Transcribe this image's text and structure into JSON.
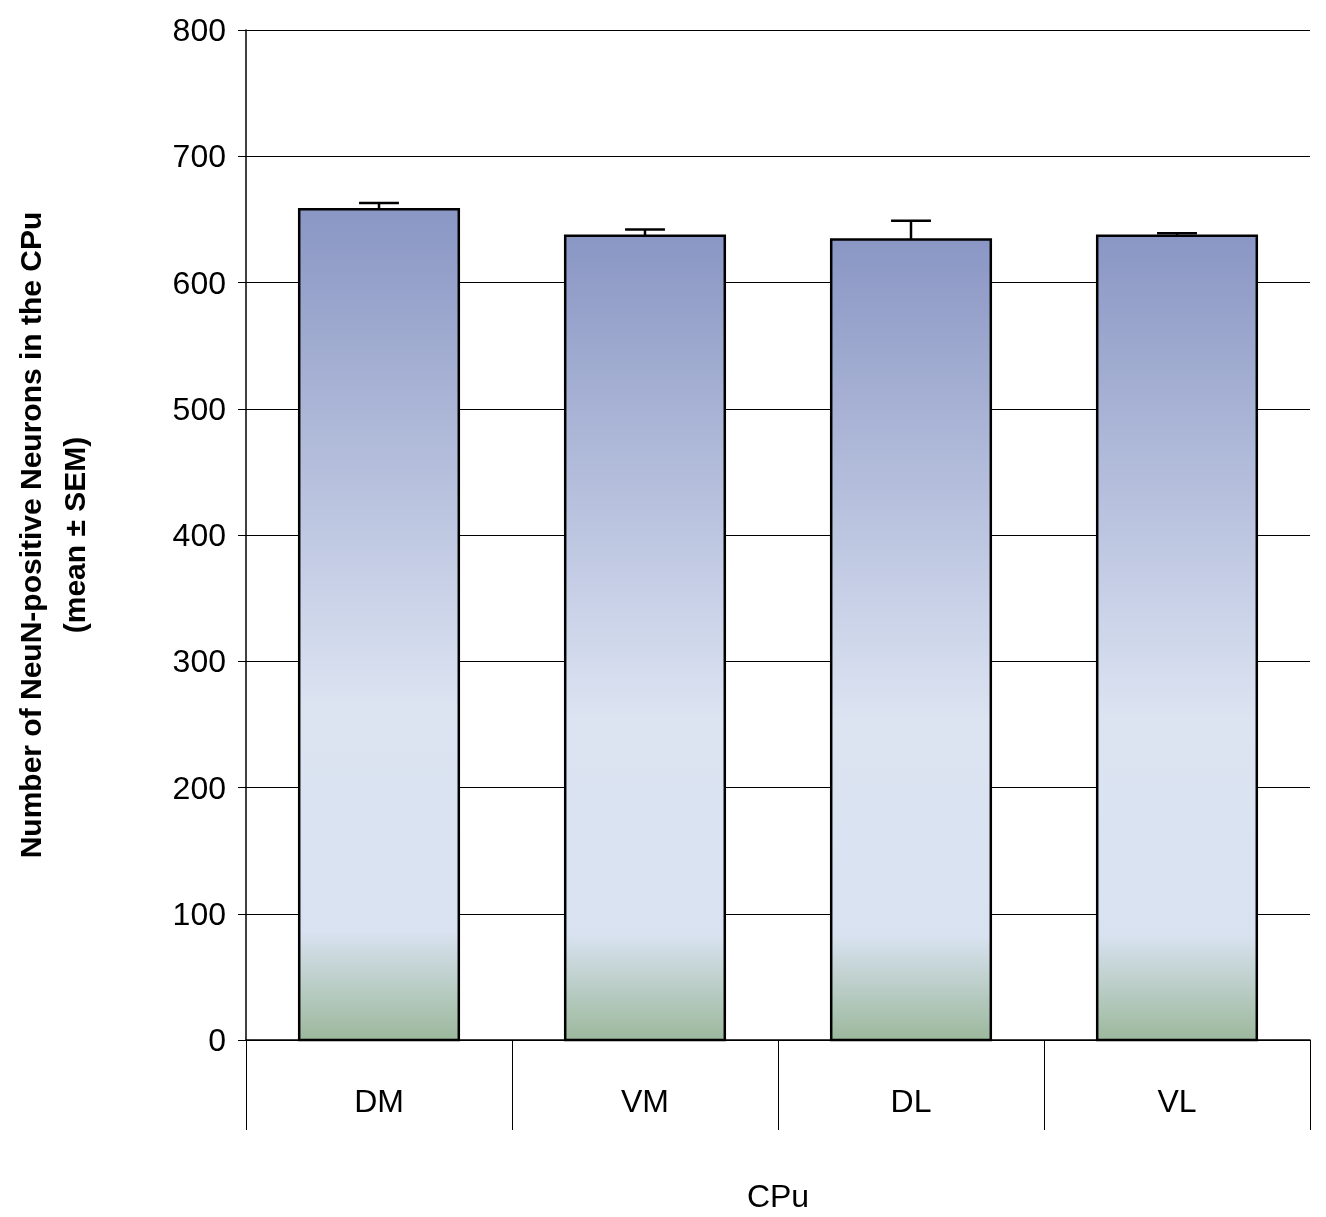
{
  "chart_data": {
    "type": "bar",
    "categories": [
      "DM",
      "VM",
      "DL",
      "VL"
    ],
    "values": [
      658,
      637,
      634,
      637
    ],
    "errors": [
      [
        658,
        663
      ],
      [
        637,
        642
      ],
      [
        634,
        649
      ],
      [
        637,
        639
      ]
    ],
    "color": "#8a96c4",
    "xlabel": "CPu",
    "ylabel": "Number of NeuN-positive Neurons in the CPu\n(mean ± SEM)",
    "ylim": [
      0,
      800
    ],
    "yticks": [
      0,
      100,
      200,
      300,
      400,
      500,
      600,
      700,
      800
    ],
    "grid": "y"
  }
}
